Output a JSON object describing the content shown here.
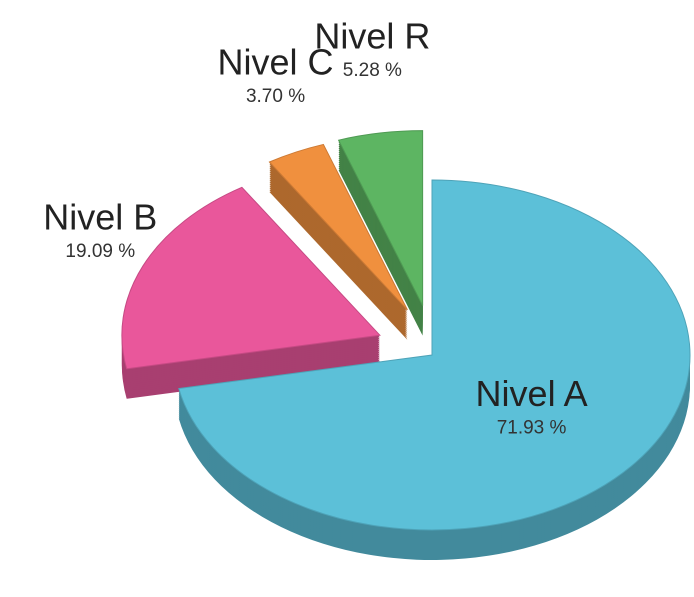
{
  "chart_data": {
    "type": "pie",
    "categories": [
      "Nivel A",
      "Nivel B",
      "Nivel C",
      "Nivel R"
    ],
    "values": [
      71.93,
      19.09,
      3.7,
      5.28
    ],
    "value_labels": [
      "71.93 %",
      "19.09 %",
      "3.70 %",
      "5.28 %"
    ],
    "colors": [
      "#5cc0d8",
      "#e9579b",
      "#f0903e",
      "#5db562"
    ]
  }
}
